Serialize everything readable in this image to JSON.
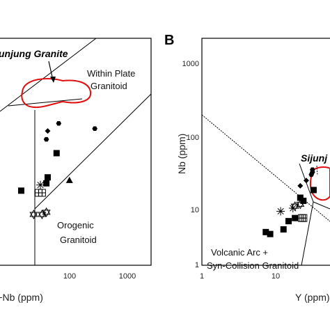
{
  "chart_data": [
    {
      "panel_label": "",
      "type": "scatter",
      "xlabel": "Y+Nb (ppm)",
      "ylabel": "",
      "xscale": "log",
      "yscale": "log",
      "xlim": [
        1,
        2000
      ],
      "ylim": [
        1,
        2000
      ],
      "x_ticks": [
        "100",
        "1000"
      ],
      "field_labels": [
        "Within Plate",
        "Granitoid",
        "Orogenic",
        "Granitoid"
      ],
      "annotation": "unjung Granite",
      "series": [
        {
          "marker": "hexagon",
          "points": [
            [
              62,
              130
            ],
            [
              260,
              110
            ],
            [
              38,
              78
            ]
          ]
        },
        {
          "marker": "diamond",
          "points": [
            [
              40,
              102
            ]
          ]
        },
        {
          "marker": "square",
          "points": [
            [
              57,
              50
            ],
            [
              40,
              23
            ],
            [
              38,
              19
            ],
            [
              14,
              15
            ]
          ]
        },
        {
          "marker": "triangle",
          "points": [
            [
              95,
              21
            ]
          ]
        },
        {
          "marker": "asterisk",
          "points": [
            [
              30,
              18
            ]
          ]
        },
        {
          "marker": "boxed-cross",
          "points": [
            [
              28,
              14
            ],
            [
              32,
              14
            ]
          ]
        },
        {
          "marker": "star",
          "points": [
            [
              23,
              7
            ],
            [
              32,
              7
            ],
            [
              38,
              7.5
            ]
          ]
        }
      ]
    },
    {
      "panel_label": "B",
      "type": "scatter",
      "xlabel": "Y (ppm)",
      "ylabel": "Nb (ppm)",
      "xscale": "log",
      "yscale": "log",
      "xlim": [
        1,
        40
      ],
      "ylim": [
        1,
        1000
      ],
      "x_ticks": [
        "1",
        "10"
      ],
      "y_ticks": [
        "1",
        "10",
        "100",
        "1000"
      ],
      "field_labels": [
        "Volcanic Arc +",
        "Syn-Collision Granitoid"
      ],
      "annotation": "Sijunj",
      "series": [
        {
          "marker": "hexagon",
          "points": [
            [
              29,
              24
            ],
            [
              28,
              22
            ],
            [
              29,
              26
            ]
          ]
        },
        {
          "marker": "diamond",
          "points": [
            [
              24,
              18
            ],
            [
              20,
              15
            ]
          ]
        },
        {
          "marker": "square",
          "points": [
            [
              20,
              10
            ],
            [
              22,
              9
            ],
            [
              30,
              13
            ],
            [
              17,
              5
            ],
            [
              14,
              4.5
            ],
            [
              12,
              3.4
            ],
            [
              7,
              3.1
            ],
            [
              8,
              2.9
            ]
          ]
        },
        {
          "marker": "asterisk",
          "points": [
            [
              11,
              6.3
            ],
            [
              16,
              7
            ]
          ]
        },
        {
          "marker": "boxed-cross",
          "points": [
            [
              21,
              5
            ],
            [
              22,
              5
            ]
          ]
        },
        {
          "marker": "star",
          "points": [
            [
              17,
              7.5
            ],
            [
              20,
              8
            ]
          ]
        }
      ]
    }
  ]
}
